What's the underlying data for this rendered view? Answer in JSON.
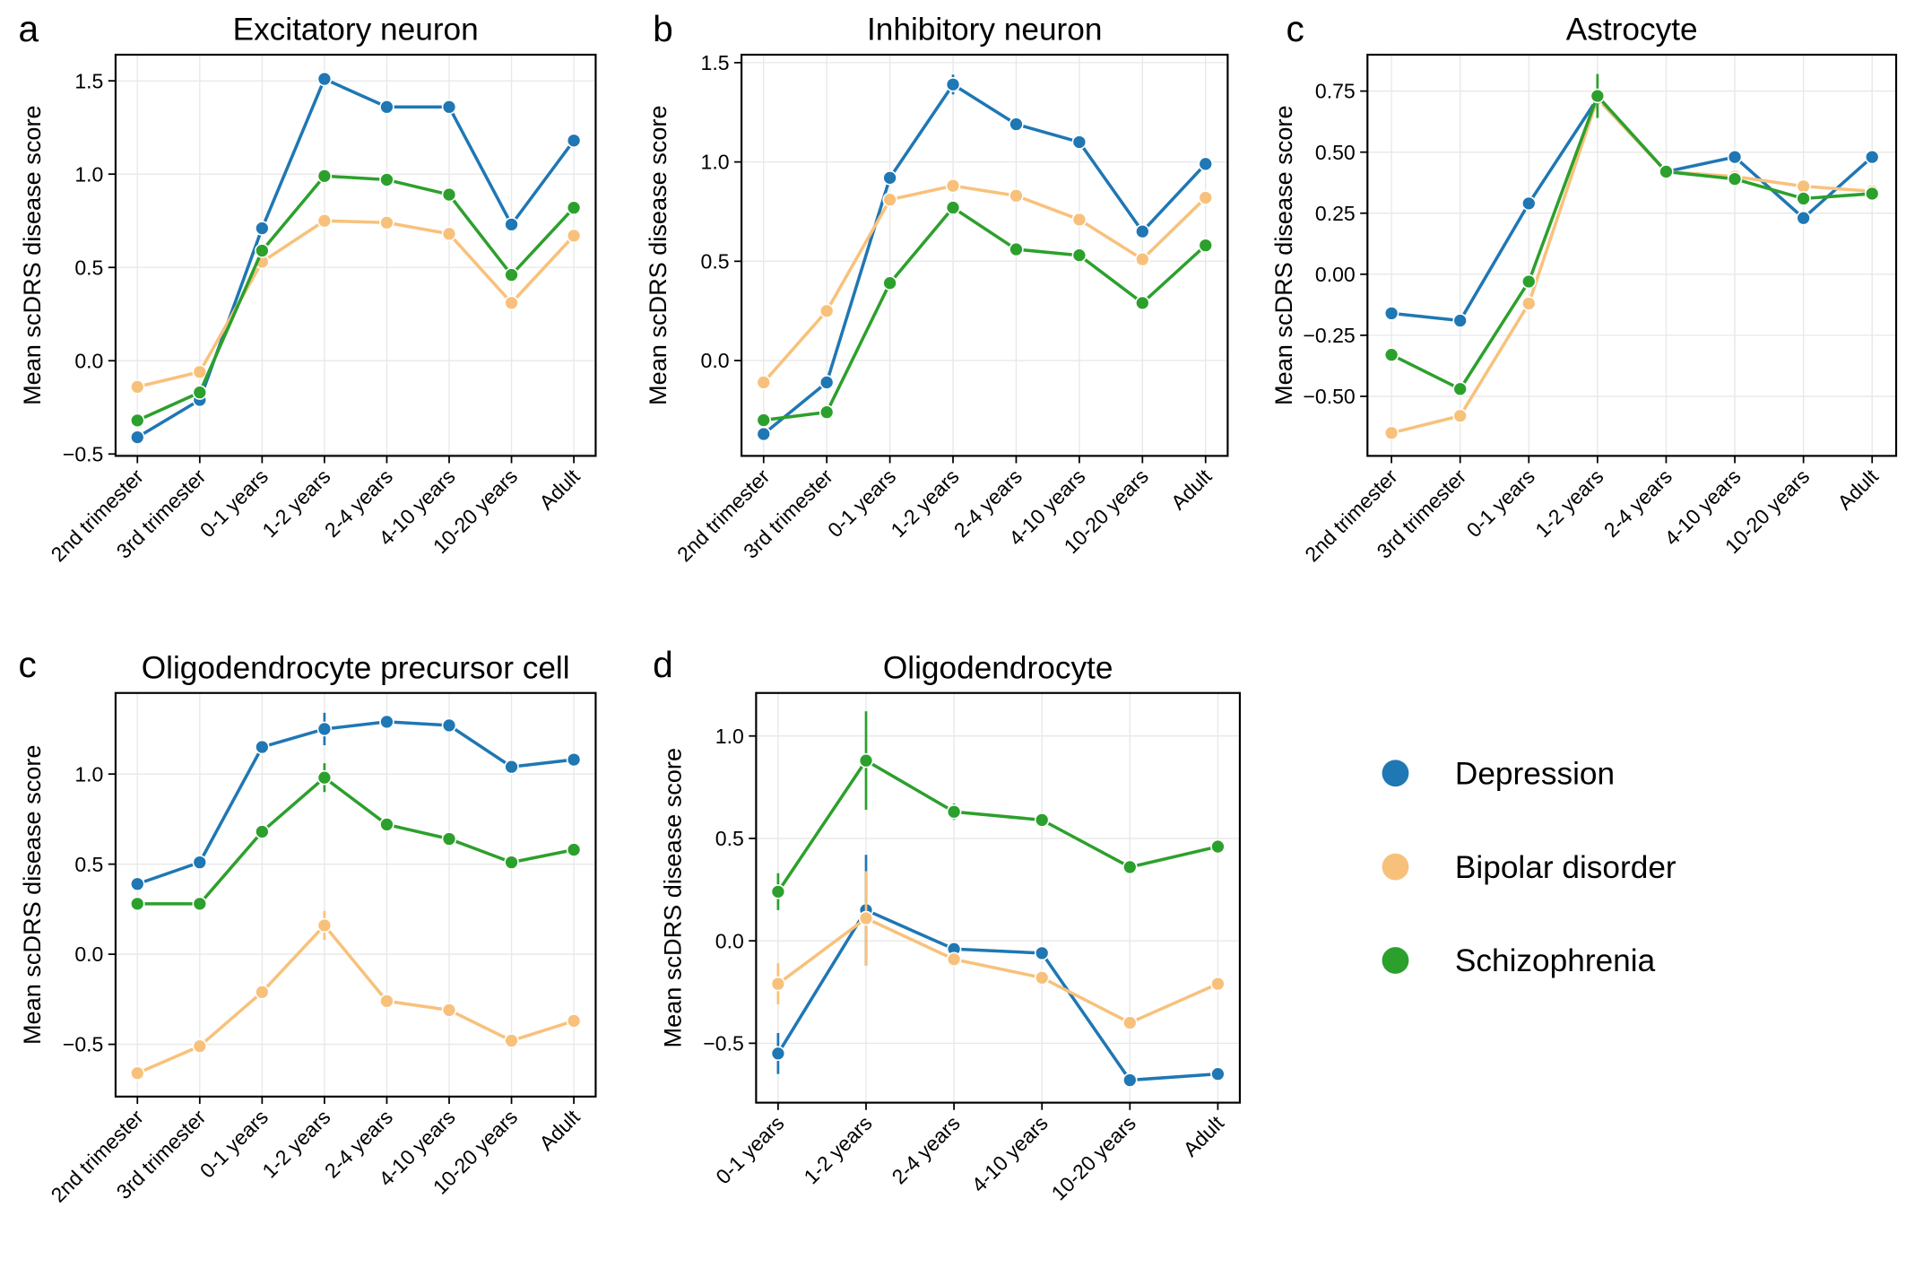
{
  "chart_data": [
    {
      "type": "line",
      "panel_label": "a",
      "title": "Excitatory neuron",
      "y_label": "Mean scDRS disease score",
      "categories": [
        "2nd trimester",
        "3rd trimester",
        "0-1 years",
        "1-2 years",
        "2-4 years",
        "4-10 years",
        "10-20 years",
        "Adult"
      ],
      "series": [
        {
          "name": "Depression",
          "color": "#1f77b4",
          "values": [
            -0.41,
            -0.21,
            0.71,
            1.51,
            1.36,
            1.36,
            0.73,
            1.18
          ]
        },
        {
          "name": "Bipolar disorder",
          "color": "#f8c17b",
          "values": [
            -0.14,
            -0.06,
            0.53,
            0.75,
            0.74,
            0.68,
            0.31,
            0.67
          ]
        },
        {
          "name": "Schizophrenia",
          "color": "#2ca02c",
          "values": [
            -0.32,
            -0.17,
            0.59,
            0.99,
            0.97,
            0.89,
            0.46,
            0.82
          ]
        }
      ],
      "ylim": [
        -0.51,
        1.64
      ],
      "yticks": [
        {
          "value": -0.5,
          "label": "−0.5"
        },
        {
          "value": 0,
          "label": "0.0"
        },
        0.5,
        {
          "value": 1,
          "label": "1.0"
        },
        1.5
      ],
      "grid": true
    },
    {
      "type": "line",
      "panel_label": "b",
      "title": "Inhibitory neuron",
      "y_label": "Mean scDRS disease score",
      "categories": [
        "2nd trimester",
        "3rd trimester",
        "0-1 years",
        "1-2 years",
        "2-4 years",
        "4-10 years",
        "10-20 years",
        "Adult"
      ],
      "series": [
        {
          "color": "#1f77b4",
          "values": [
            -0.37,
            -0.11,
            0.92,
            1.39,
            1.19,
            1.1,
            0.65,
            0.99
          ],
          "errors": [
            null,
            null,
            null,
            0.05,
            null,
            null,
            null,
            null
          ]
        },
        {
          "color": "#f8c17b",
          "values": [
            -0.11,
            0.25,
            0.81,
            0.88,
            0.83,
            0.71,
            0.51,
            0.82
          ]
        },
        {
          "color": "#2ca02c",
          "values": [
            -0.3,
            -0.26,
            0.39,
            0.77,
            0.56,
            0.53,
            0.29,
            0.58
          ]
        }
      ],
      "ylim": [
        -0.48,
        1.54
      ],
      "yticks": [
        {
          "value": 0,
          "label": "0.0"
        },
        0.5,
        {
          "value": 1,
          "label": "1.0"
        },
        1.5
      ],
      "grid": true
    },
    {
      "type": "line",
      "panel_label": "c",
      "title": "Astrocyte",
      "y_label": "Mean scDRS disease score",
      "categories": [
        "2nd trimester",
        "3rd trimester",
        "0-1 years",
        "1-2 years",
        "2-4 years",
        "4-10 years",
        "10-20 years",
        "Adult"
      ],
      "series": [
        {
          "color": "#1f77b4",
          "values": [
            -0.16,
            -0.19,
            0.29,
            0.72,
            0.42,
            0.48,
            0.23,
            0.48
          ]
        },
        {
          "color": "#f8c17b",
          "values": [
            -0.65,
            -0.58,
            -0.12,
            0.72,
            0.42,
            0.4,
            0.36,
            0.34
          ]
        },
        {
          "color": "#2ca02c",
          "values": [
            -0.33,
            -0.47,
            -0.03,
            0.73,
            0.42,
            0.39,
            0.31,
            0.33
          ],
          "errors": [
            null,
            null,
            null,
            0.09,
            null,
            null,
            null,
            null
          ]
        }
      ],
      "ylim": [
        -0.744,
        0.899
      ],
      "yticks": [
        {
          "value": -0.5,
          "label": "−0.50"
        },
        {
          "value": -0.25,
          "label": "−0.25"
        },
        {
          "value": 0,
          "label": "0.00"
        },
        0.25,
        {
          "value": 0.5,
          "label": "0.50"
        },
        0.75
      ],
      "grid": true
    },
    {
      "type": "line",
      "panel_label": "c",
      "title": "Oligodendrocyte precursor cell",
      "y_label": "Mean scDRS disease score",
      "categories": [
        "2nd trimester",
        "3rd trimester",
        "0-1 years",
        "1-2 years",
        "2-4 years",
        "4-10 years",
        "10-20 years",
        "Adult"
      ],
      "series": [
        {
          "color": "#1f77b4",
          "values": [
            0.39,
            0.51,
            1.15,
            1.25,
            1.29,
            1.27,
            1.04,
            1.08
          ],
          "errors": [
            null,
            null,
            null,
            0.09,
            null,
            null,
            null,
            null
          ]
        },
        {
          "color": "#f8c17b",
          "values": [
            -0.66,
            -0.51,
            -0.21,
            0.16,
            -0.26,
            -0.31,
            -0.48,
            -0.37
          ],
          "errors": [
            null,
            null,
            null,
            0.08,
            null,
            null,
            null,
            null
          ]
        },
        {
          "color": "#2ca02c",
          "values": [
            0.28,
            0.28,
            0.68,
            0.98,
            0.72,
            0.64,
            0.51,
            0.58
          ],
          "errors": [
            null,
            null,
            null,
            0.08,
            null,
            null,
            null,
            null
          ]
        }
      ],
      "ylim": [
        -0.79,
        1.45
      ],
      "yticks": [
        {
          "value": -0.5,
          "label": "−0.5"
        },
        {
          "value": 0,
          "label": "0.0"
        },
        0.5,
        {
          "value": 1,
          "label": "1.0"
        }
      ],
      "grid": true
    },
    {
      "type": "line",
      "panel_label": "d",
      "title": "Oligodendrocyte",
      "y_label": "Mean scDRS disease score",
      "categories": [
        "0-1 years",
        "1-2 years",
        "2-4 years",
        "4-10 years",
        "10-20 years",
        "Adult"
      ],
      "series": [
        {
          "color": "#1f77b4",
          "values": [
            -0.55,
            0.15,
            -0.04,
            -0.06,
            -0.68,
            -0.65
          ],
          "errors": [
            0.1,
            0.27,
            null,
            null,
            null,
            null
          ]
        },
        {
          "color": "#f8c17b",
          "values": [
            -0.21,
            0.11,
            -0.09,
            -0.18,
            -0.4,
            -0.21
          ],
          "errors": [
            0.1,
            0.23,
            null,
            null,
            null,
            null
          ]
        },
        {
          "color": "#2ca02c",
          "values": [
            0.24,
            0.88,
            0.63,
            0.59,
            0.36,
            0.46
          ],
          "errors": [
            0.09,
            0.24,
            0.04,
            null,
            null,
            null
          ]
        }
      ],
      "ylim": [
        -0.79,
        1.21
      ],
      "yticks": [
        {
          "value": -0.5,
          "label": "−0.5"
        },
        {
          "value": 0,
          "label": "0.0"
        },
        0.5,
        {
          "value": 1,
          "label": "1.0"
        }
      ],
      "grid": true
    }
  ]
}
